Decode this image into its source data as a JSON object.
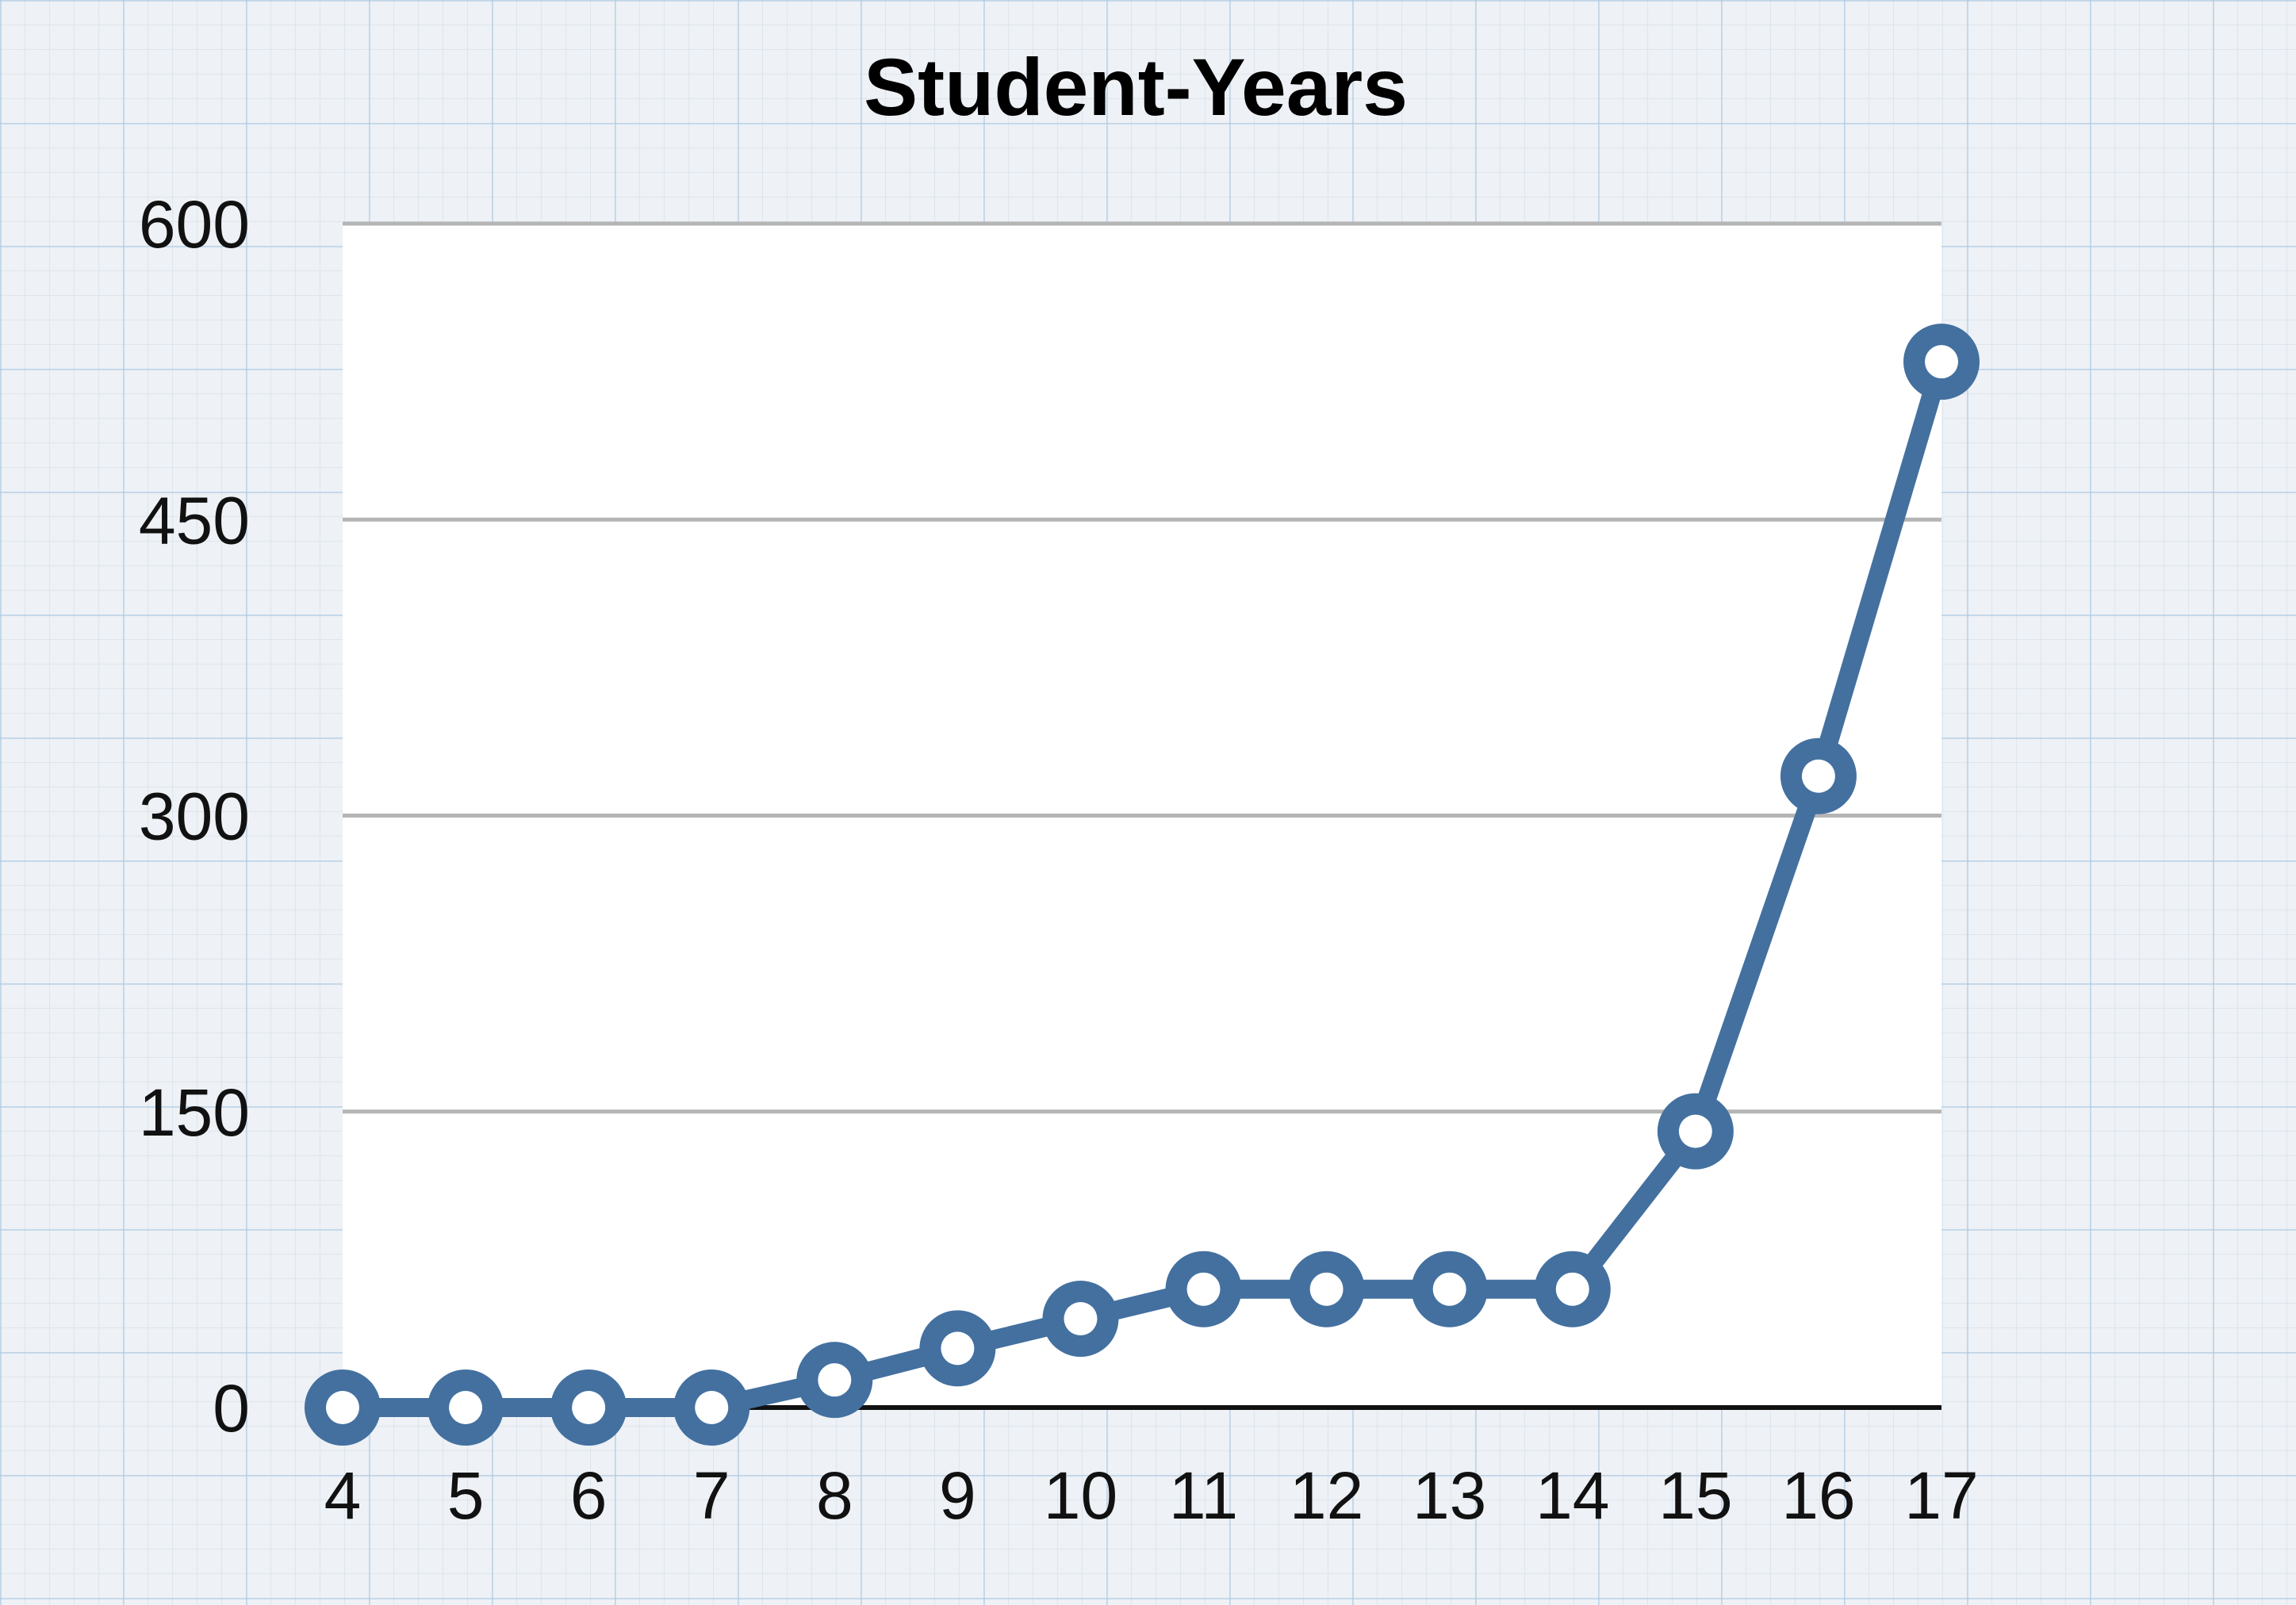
{
  "chart_data": {
    "type": "line",
    "title": "Student-Years",
    "xlabel": "",
    "ylabel": "",
    "x": [
      4,
      5,
      6,
      7,
      8,
      9,
      10,
      11,
      12,
      13,
      14,
      15,
      16,
      17
    ],
    "series": [
      {
        "values": [
          0,
          0,
          0,
          0,
          14,
          30,
          45,
          60,
          60,
          60,
          60,
          140,
          320,
          530
        ]
      }
    ],
    "y_ticks": [
      0,
      150,
      300,
      450,
      600
    ],
    "ylim": [
      0,
      600
    ],
    "grid": "horizontal",
    "legend": "none",
    "colors": {
      "line": "#43709f",
      "marker_fill": "#ffffff",
      "grid": "#b5b5b5",
      "baseline": "#111111",
      "plot_background": "#ffffff"
    }
  }
}
